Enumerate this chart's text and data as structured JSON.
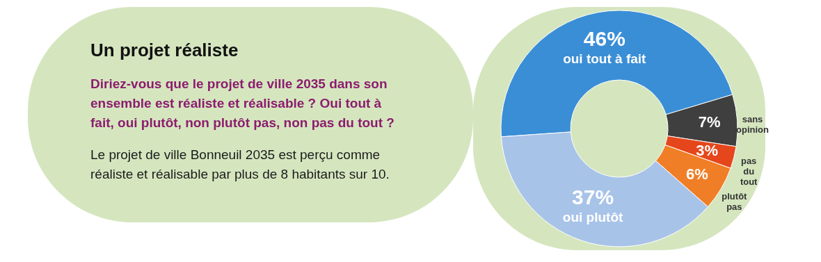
{
  "chart_data": {
    "type": "donut",
    "title": "Un projet réaliste",
    "subtitle": "Diriez-vous que le projet de ville 2035 dans son ensemble est réaliste et réalisable ? Oui tout à fait, oui plutôt, non plutôt pas, non pas du tout ?",
    "annotations": [
      "Le projet de ville Bonneuil 2035 est perçu comme réaliste et réalisable par plus de 8 habitants sur 10."
    ],
    "categories": [
      "oui tout à fait",
      "sans opinion",
      "pas du tout",
      "plutôt pas",
      "oui plutôt"
    ],
    "values": [
      46,
      7,
      3,
      6,
      37
    ],
    "colors": [
      "#3a8ed6",
      "#3f3f3f",
      "#e5461b",
      "#f07e26",
      "#a8c3e8"
    ],
    "value_labels": [
      "46%",
      "7%",
      "3%",
      "6%",
      "37%"
    ],
    "legend": false
  }
}
